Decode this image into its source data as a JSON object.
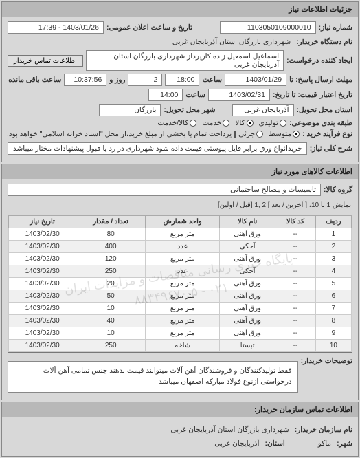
{
  "panel1": {
    "title": "جزئیات اطلاعات نیاز",
    "request_no_label": "شماره نیاز:",
    "request_no": "1103050109000010",
    "announce_label": "تاریخ و ساعت اعلان عمومی:",
    "announce_value": "1403/01/26 - 17:39",
    "buyer_name_label": "نام دستگاه خریدار:",
    "buyer_name": "شهرداری بازرگان استان آذربایجان غربی",
    "requester_label": "ایجاد کننده درخواست:",
    "requester": "اسماعیل اسمعیل زاده کارپرداز شهرداری بازرگان استان آذربایجان غربی",
    "contact_btn": "اطلاعات تماس خریدار",
    "deadline_row": {
      "label1": "مهلت ارسال پاسخ: تا",
      "label2": "تاریخ:",
      "date": "1403/01/29",
      "time_label": "ساعت",
      "time": "18:00",
      "days": "2",
      "days_label": "روز و",
      "remain": "10:37:56",
      "remain_label": "ساعت باقی مانده"
    },
    "price_row": {
      "label1": "تاریخ اعتبار",
      "label2": "قیمت: تا تاریخ:",
      "date": "1403/02/31",
      "time_label": "ساعت",
      "time": "14:00"
    },
    "delivery_province_label": "استان محل تحویل:",
    "delivery_province": "آذربایجان غربی",
    "delivery_city_label": "شهر محل تحویل:",
    "delivery_city": "بازرگان",
    "category_label": "طبقه بندی موضوعی:",
    "cat_options": [
      "تولیدی",
      "کالا",
      "خدمت",
      "کالا/خدمت"
    ],
    "cat_selected": 1,
    "payment_label": "نوع فرآیند خرید :",
    "pay_options": [
      "متوسط",
      "جزئی"
    ],
    "pay_selected": 0,
    "pay_note_checkbox_label": "پرداخت تمام یا بخشی از مبلغ خرید،از محل \"اسناد خزانه اسلامی\" خواهد بود.",
    "need_desc_label": "شرح کلی نیاز:",
    "need_desc": "خریدانواع ورق برابر فایل پیوستی قیمت داده شود شهرداری در رد یا قبول پیشنهادات مختار میباشد"
  },
  "panel2": {
    "title": "اطلاعات کالاهای مورد نیاز",
    "group_label": "گروه کالا:",
    "group_value": "تاسیسات و مصالح ساختمانی",
    "pager_text": "نمایش 1 تا 10، [ آخرین / بعد ] 2 ,1 [قبل / اولین]",
    "columns": [
      "ردیف",
      "کد کالا",
      "نام کالا",
      "واحد شمارش",
      "تعداد / مقدار",
      "تاریخ نیاز"
    ],
    "rows": [
      [
        "1",
        "--",
        "ورق آهنی",
        "متر مربع",
        "80",
        "1403/02/30"
      ],
      [
        "2",
        "--",
        "آجکی",
        "عدد",
        "400",
        "1403/02/30"
      ],
      [
        "3",
        "--",
        "ورق آهنی",
        "متر مربع",
        "120",
        "1403/02/30"
      ],
      [
        "4",
        "--",
        "آجکی",
        "عدد",
        "250",
        "1403/02/30"
      ],
      [
        "5",
        "--",
        "ورق آهنی",
        "متر مربع",
        "20",
        "1403/02/30"
      ],
      [
        "6",
        "--",
        "ورق آهنی",
        "متر مربع",
        "50",
        "1403/02/30"
      ],
      [
        "7",
        "--",
        "ورق آهنی",
        "متر مربع",
        "10",
        "1403/02/30"
      ],
      [
        "8",
        "--",
        "ورق آهنی",
        "متر مربع",
        "40",
        "1403/02/30"
      ],
      [
        "9",
        "--",
        "ورق آهنی",
        "متر مربع",
        "10",
        "1403/02/30"
      ],
      [
        "10",
        "--",
        "تبستا",
        "شاخه",
        "250",
        "1403/02/30"
      ]
    ],
    "watermark_line1": "پایگاه خبری رسانی مناقصات و مزایدات ایران",
    "watermark_line2": "۰۲۱ - ۸۸۳۴۹۶۷۰-۵",
    "buyer_note_label": "توضیحات خریدار:",
    "buyer_note": "فقط تولیدکنندگان و فروشندگان آهن آلات میتوانند قیمت بدهند جنس تمامی آهن آلات درخواستی ازنوع فولاد مبارکه اصفهان میباشد"
  },
  "footer": {
    "title": "اطلاعات تماس سازمان خریدار:",
    "org_label": "نام سازمان خریدار:",
    "org_value": "شهرداری بازرگان استان آذربایجان غربی",
    "city_label": "شهر:",
    "city_value": "ماکو",
    "province_label": "استان:",
    "province_value": "آذربایجان غربی"
  }
}
